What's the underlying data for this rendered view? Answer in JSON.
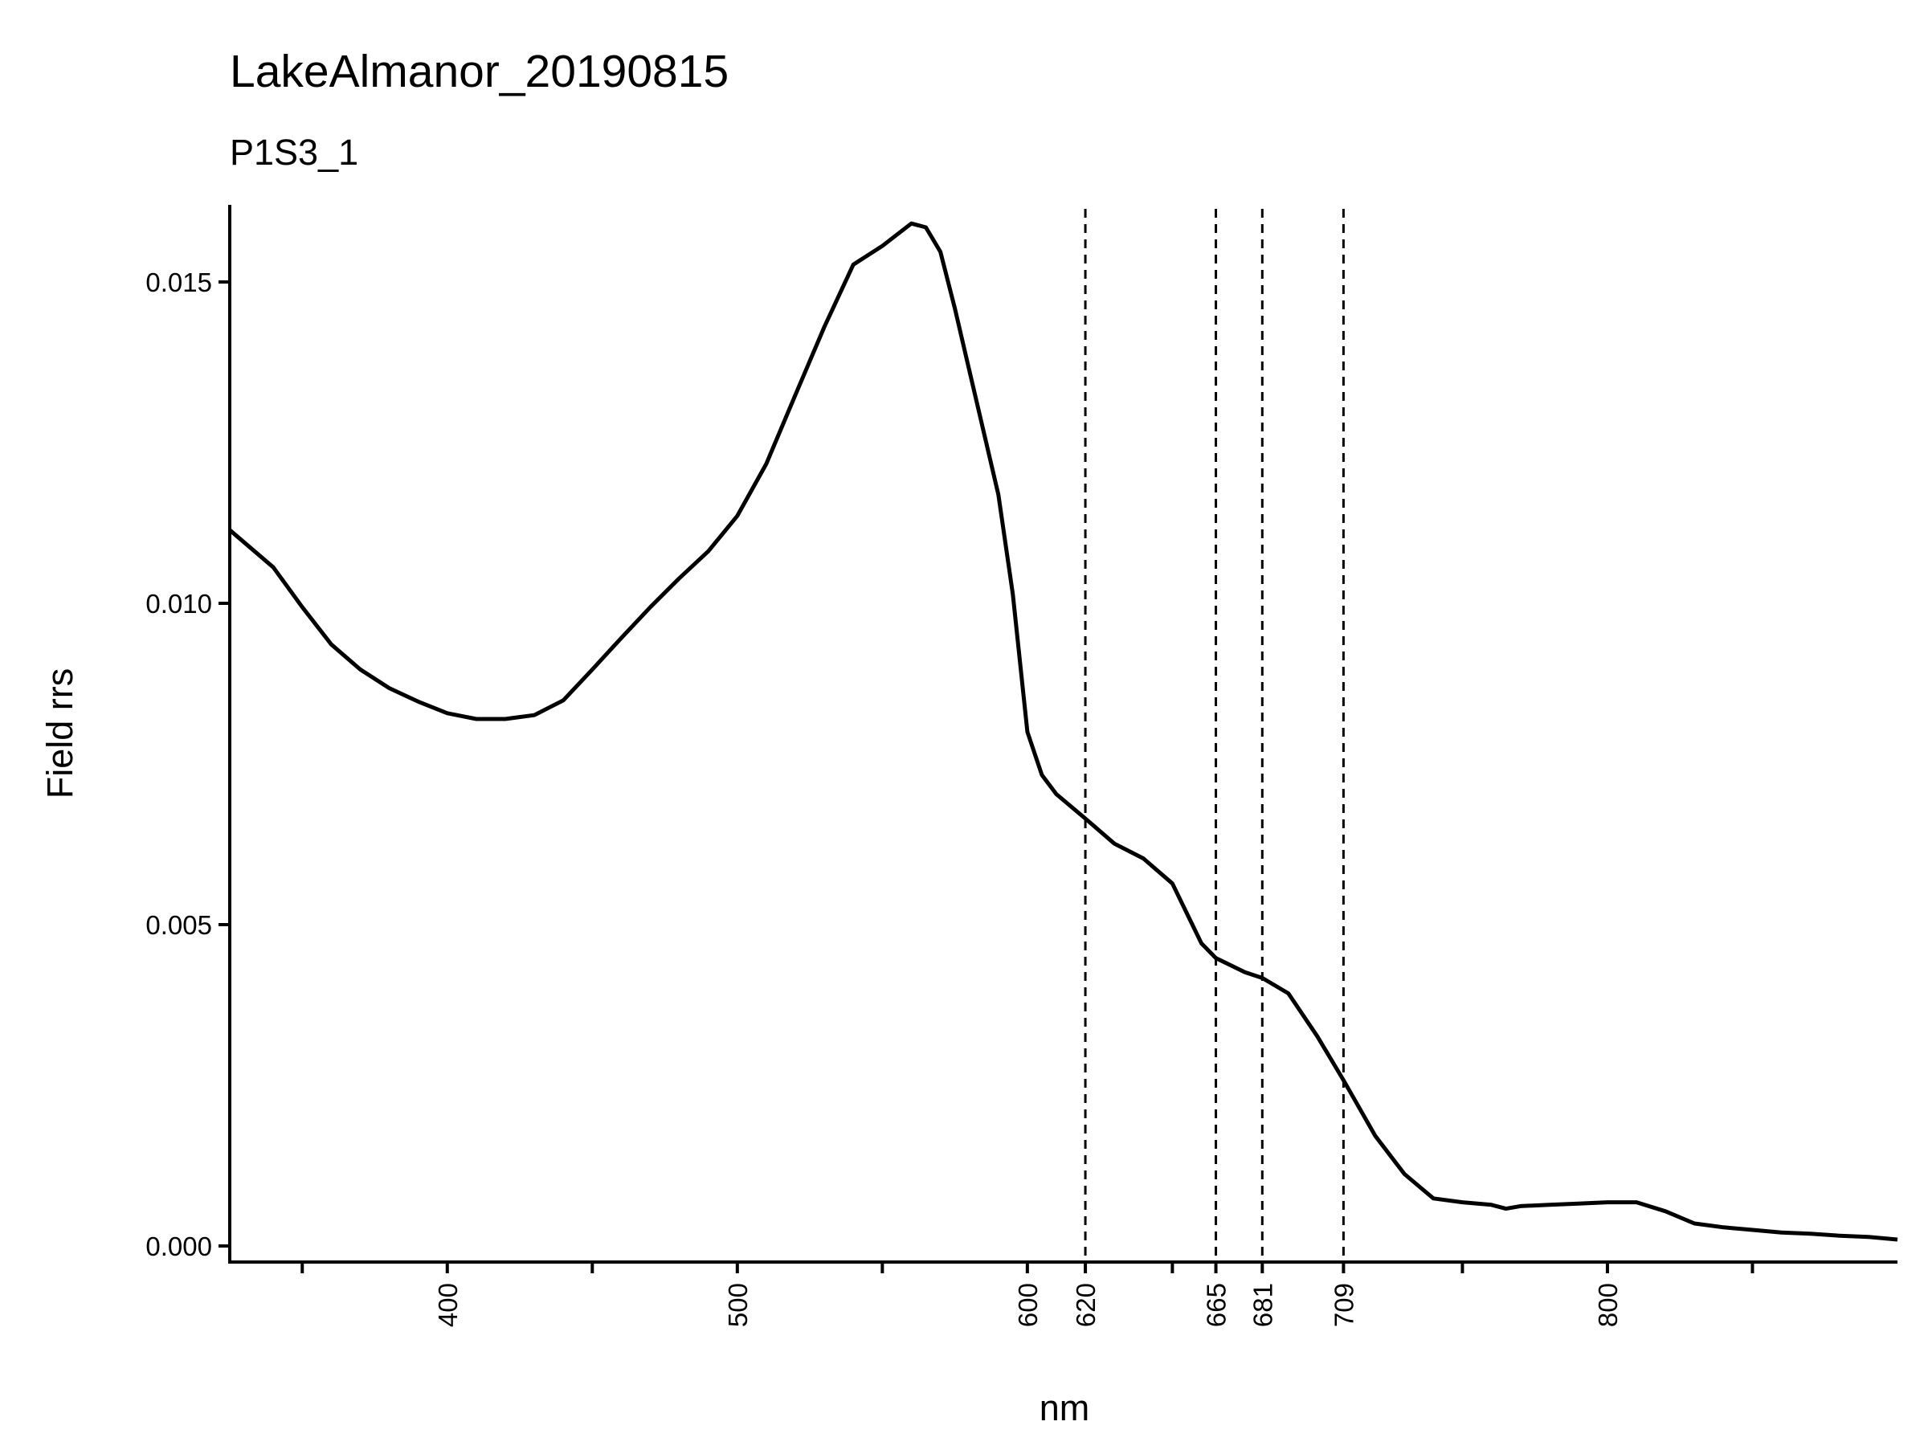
{
  "chart_data": {
    "type": "line",
    "title": "LakeAlmanor_20190815",
    "subtitle": "P1S3_1",
    "x_label": "nm",
    "y_label": "Field rrs",
    "color": "#000000",
    "x": [
      325,
      340,
      350,
      360,
      370,
      380,
      390,
      400,
      410,
      420,
      430,
      440,
      450,
      460,
      470,
      480,
      490,
      500,
      510,
      520,
      530,
      540,
      550,
      560,
      565,
      570,
      575,
      580,
      590,
      595,
      600,
      605,
      610,
      620,
      630,
      640,
      650,
      660,
      665,
      675,
      681,
      690,
      700,
      709,
      720,
      730,
      740,
      750,
      760,
      765,
      770,
      780,
      790,
      800,
      810,
      820,
      830,
      840,
      850,
      860,
      870,
      880,
      890,
      900
    ],
    "values": [
      0.01114,
      0.01056,
      0.00994,
      0.00936,
      0.00897,
      0.00868,
      0.00847,
      0.00829,
      0.0082,
      0.0082,
      0.00826,
      0.00849,
      0.00897,
      0.00946,
      0.00994,
      0.01039,
      0.01081,
      0.01136,
      0.01217,
      0.01324,
      0.0143,
      0.01527,
      0.01556,
      0.01591,
      0.01585,
      0.01547,
      0.01459,
      0.01362,
      0.01169,
      0.01014,
      0.008,
      0.00733,
      0.00703,
      0.00665,
      0.00626,
      0.00603,
      0.00564,
      0.00471,
      0.00448,
      0.00426,
      0.00417,
      0.00393,
      0.00326,
      0.00258,
      0.00171,
      0.00112,
      0.00074,
      0.00068,
      0.00064,
      0.00058,
      0.00062,
      0.00064,
      0.00066,
      0.00068,
      0.00068,
      0.00054,
      0.00035,
      0.00029,
      0.00025,
      0.00021,
      0.00019,
      0.00016,
      0.00014,
      0.0001
    ],
    "xlim": [
      325,
      900
    ],
    "ylim": [
      -0.00025,
      0.0162
    ],
    "xticks": [
      400,
      500,
      600,
      620,
      665,
      681,
      709,
      800
    ],
    "xminor": [
      350,
      450,
      550,
      650,
      750,
      850
    ],
    "yticks": [
      {
        "value": 0,
        "label": "0.000"
      },
      0.005,
      {
        "value": 0.01,
        "label": "0.010"
      },
      0.015
    ],
    "vlines": [
      620,
      665,
      681,
      709
    ]
  }
}
